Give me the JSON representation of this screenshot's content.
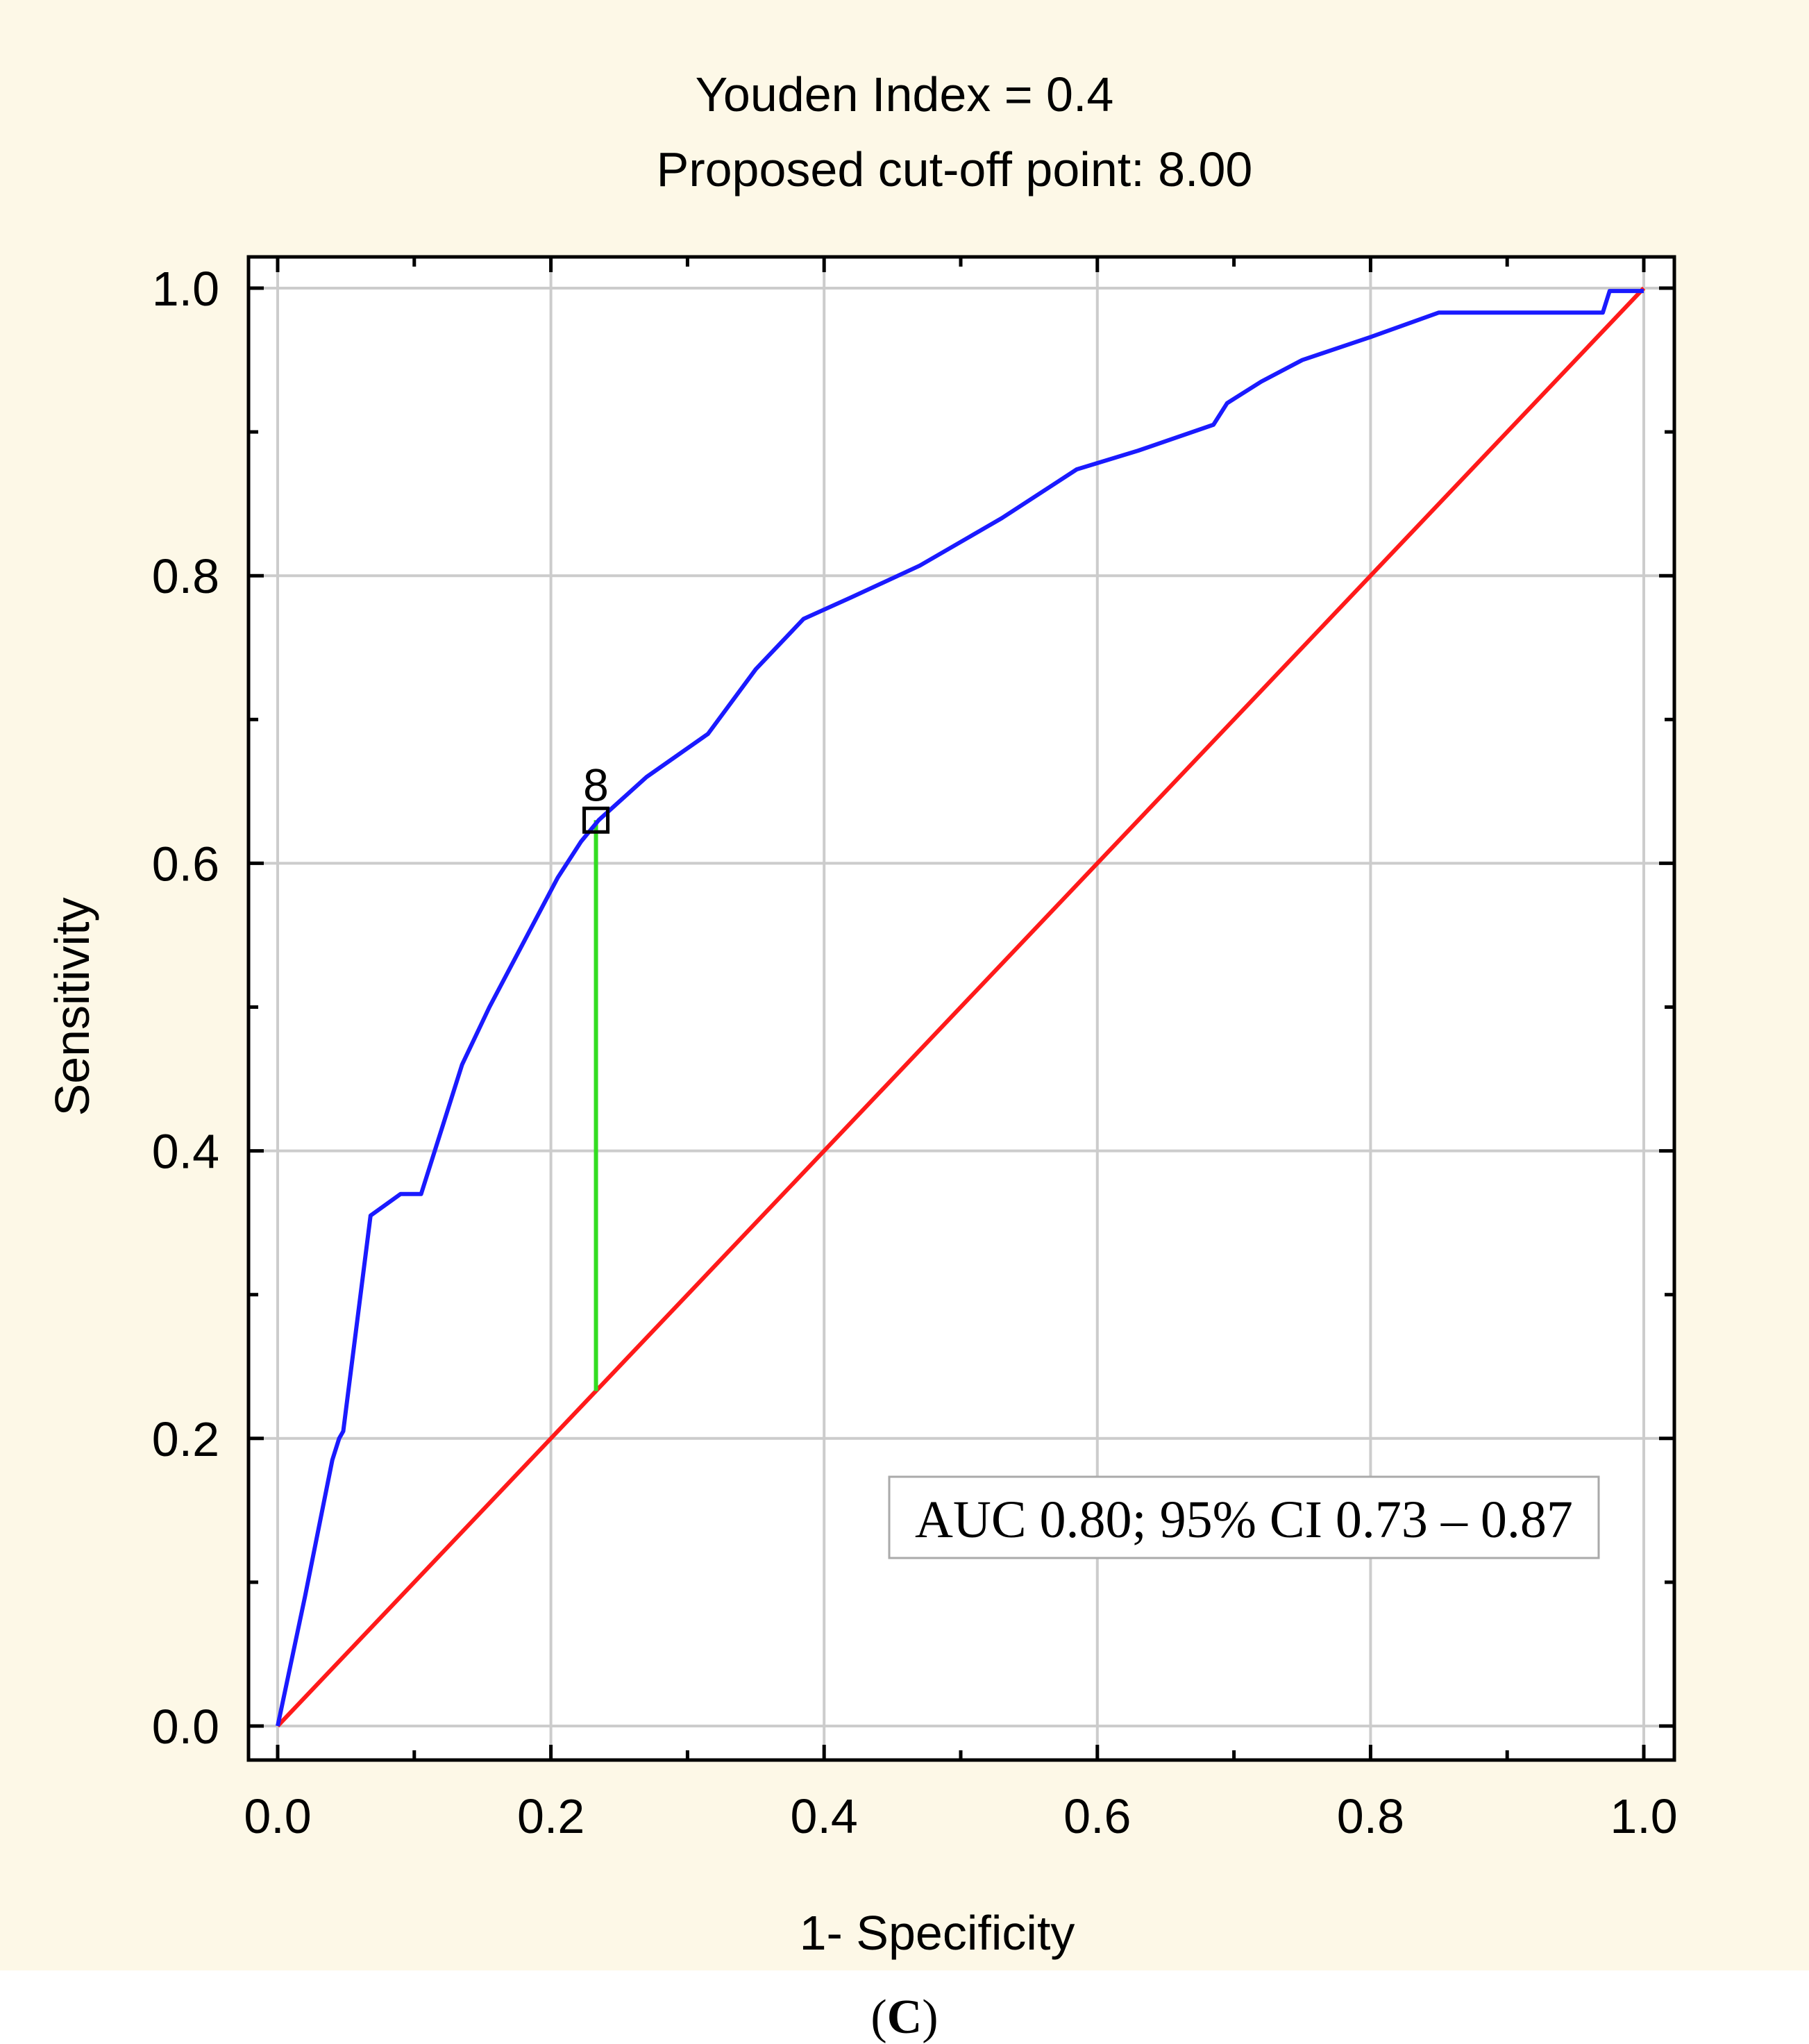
{
  "colors": {
    "background": "#fdf8e7",
    "plot_background": "#ffffff",
    "grid": "#cccccc",
    "axis": "#000000",
    "roc_curve": "#1a1aff",
    "reference_line": "#ff1a1a",
    "youden_line": "#33dd22",
    "text": "#000000"
  },
  "chart_data": {
    "type": "line",
    "title": "Youden Index  = 0.4",
    "subtitle": "Proposed cut-off point: 8.00",
    "xlabel": "1- Specificity",
    "ylabel": "Sensitivity",
    "xlim": [
      0,
      1
    ],
    "ylim": [
      0,
      1
    ],
    "x_ticks": [
      "0.0",
      "0.2",
      "0.4",
      "0.6",
      "0.8",
      "1.0"
    ],
    "y_ticks": [
      "0.0",
      "0.2",
      "0.4",
      "0.6",
      "0.8",
      "1.0"
    ],
    "grid": true,
    "series": [
      {
        "role": "roc",
        "color": "#1a1aff",
        "x": [
          0.0,
          0.02,
          0.04,
          0.045,
          0.048,
          0.068,
          0.09,
          0.105,
          0.12,
          0.135,
          0.155,
          0.18,
          0.205,
          0.222,
          0.235,
          0.27,
          0.315,
          0.35,
          0.385,
          0.42,
          0.47,
          0.53,
          0.585,
          0.63,
          0.685,
          0.695,
          0.72,
          0.75,
          0.8,
          0.85,
          0.9,
          0.97,
          0.975,
          1.0
        ],
        "y": [
          0.0,
          0.09,
          0.185,
          0.2,
          0.205,
          0.355,
          0.37,
          0.37,
          0.415,
          0.46,
          0.5,
          0.545,
          0.59,
          0.615,
          0.63,
          0.66,
          0.69,
          0.735,
          0.77,
          0.785,
          0.807,
          0.84,
          0.874,
          0.887,
          0.905,
          0.92,
          0.935,
          0.95,
          0.966,
          0.983,
          0.983,
          0.983,
          0.998,
          0.998
        ]
      },
      {
        "role": "reference",
        "color": "#ff1a1a",
        "x": [
          0,
          1
        ],
        "y": [
          0,
          1
        ]
      }
    ],
    "youden_line": {
      "x": 0.233,
      "y_from": 0.233,
      "y_to": 0.63,
      "color": "#33dd22"
    },
    "cutoff_marker": {
      "x": 0.233,
      "y": 0.63,
      "label": "8"
    },
    "annotation": "AUC  0.80; 95% CI 0.73 – 0.87",
    "panel_label_open": "(",
    "panel_label_letter": "C",
    "panel_label_close": ")"
  }
}
